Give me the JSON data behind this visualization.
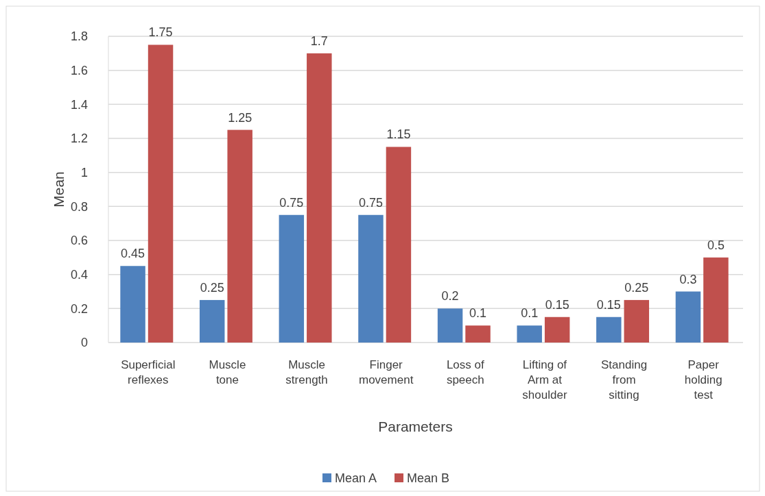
{
  "chart_data": {
    "type": "bar",
    "xlabel": "Parameters",
    "ylabel": "Mean",
    "categories": [
      "Superficial reflexes",
      "Muscle tone",
      "Muscle strength",
      "Finger movement",
      "Loss of speech",
      "Lifting of Arm at shoulder",
      "Standing from sitting",
      "Paper holding test"
    ],
    "series": [
      {
        "name": "Mean A",
        "color": "#4f81bd",
        "values": [
          0.45,
          0.25,
          0.75,
          0.75,
          0.2,
          0.1,
          0.15,
          0.3
        ]
      },
      {
        "name": "Mean B",
        "color": "#c0504d",
        "values": [
          1.75,
          1.25,
          1.7,
          1.15,
          0.1,
          0.15,
          0.25,
          0.5
        ]
      }
    ],
    "ylim": [
      0,
      1.8
    ],
    "yticks": [
      0,
      0.2,
      0.4,
      0.6,
      0.8,
      1,
      1.2,
      1.4,
      1.6,
      1.8
    ],
    "grid": "y",
    "legend": "bottom",
    "data_labels": true
  }
}
